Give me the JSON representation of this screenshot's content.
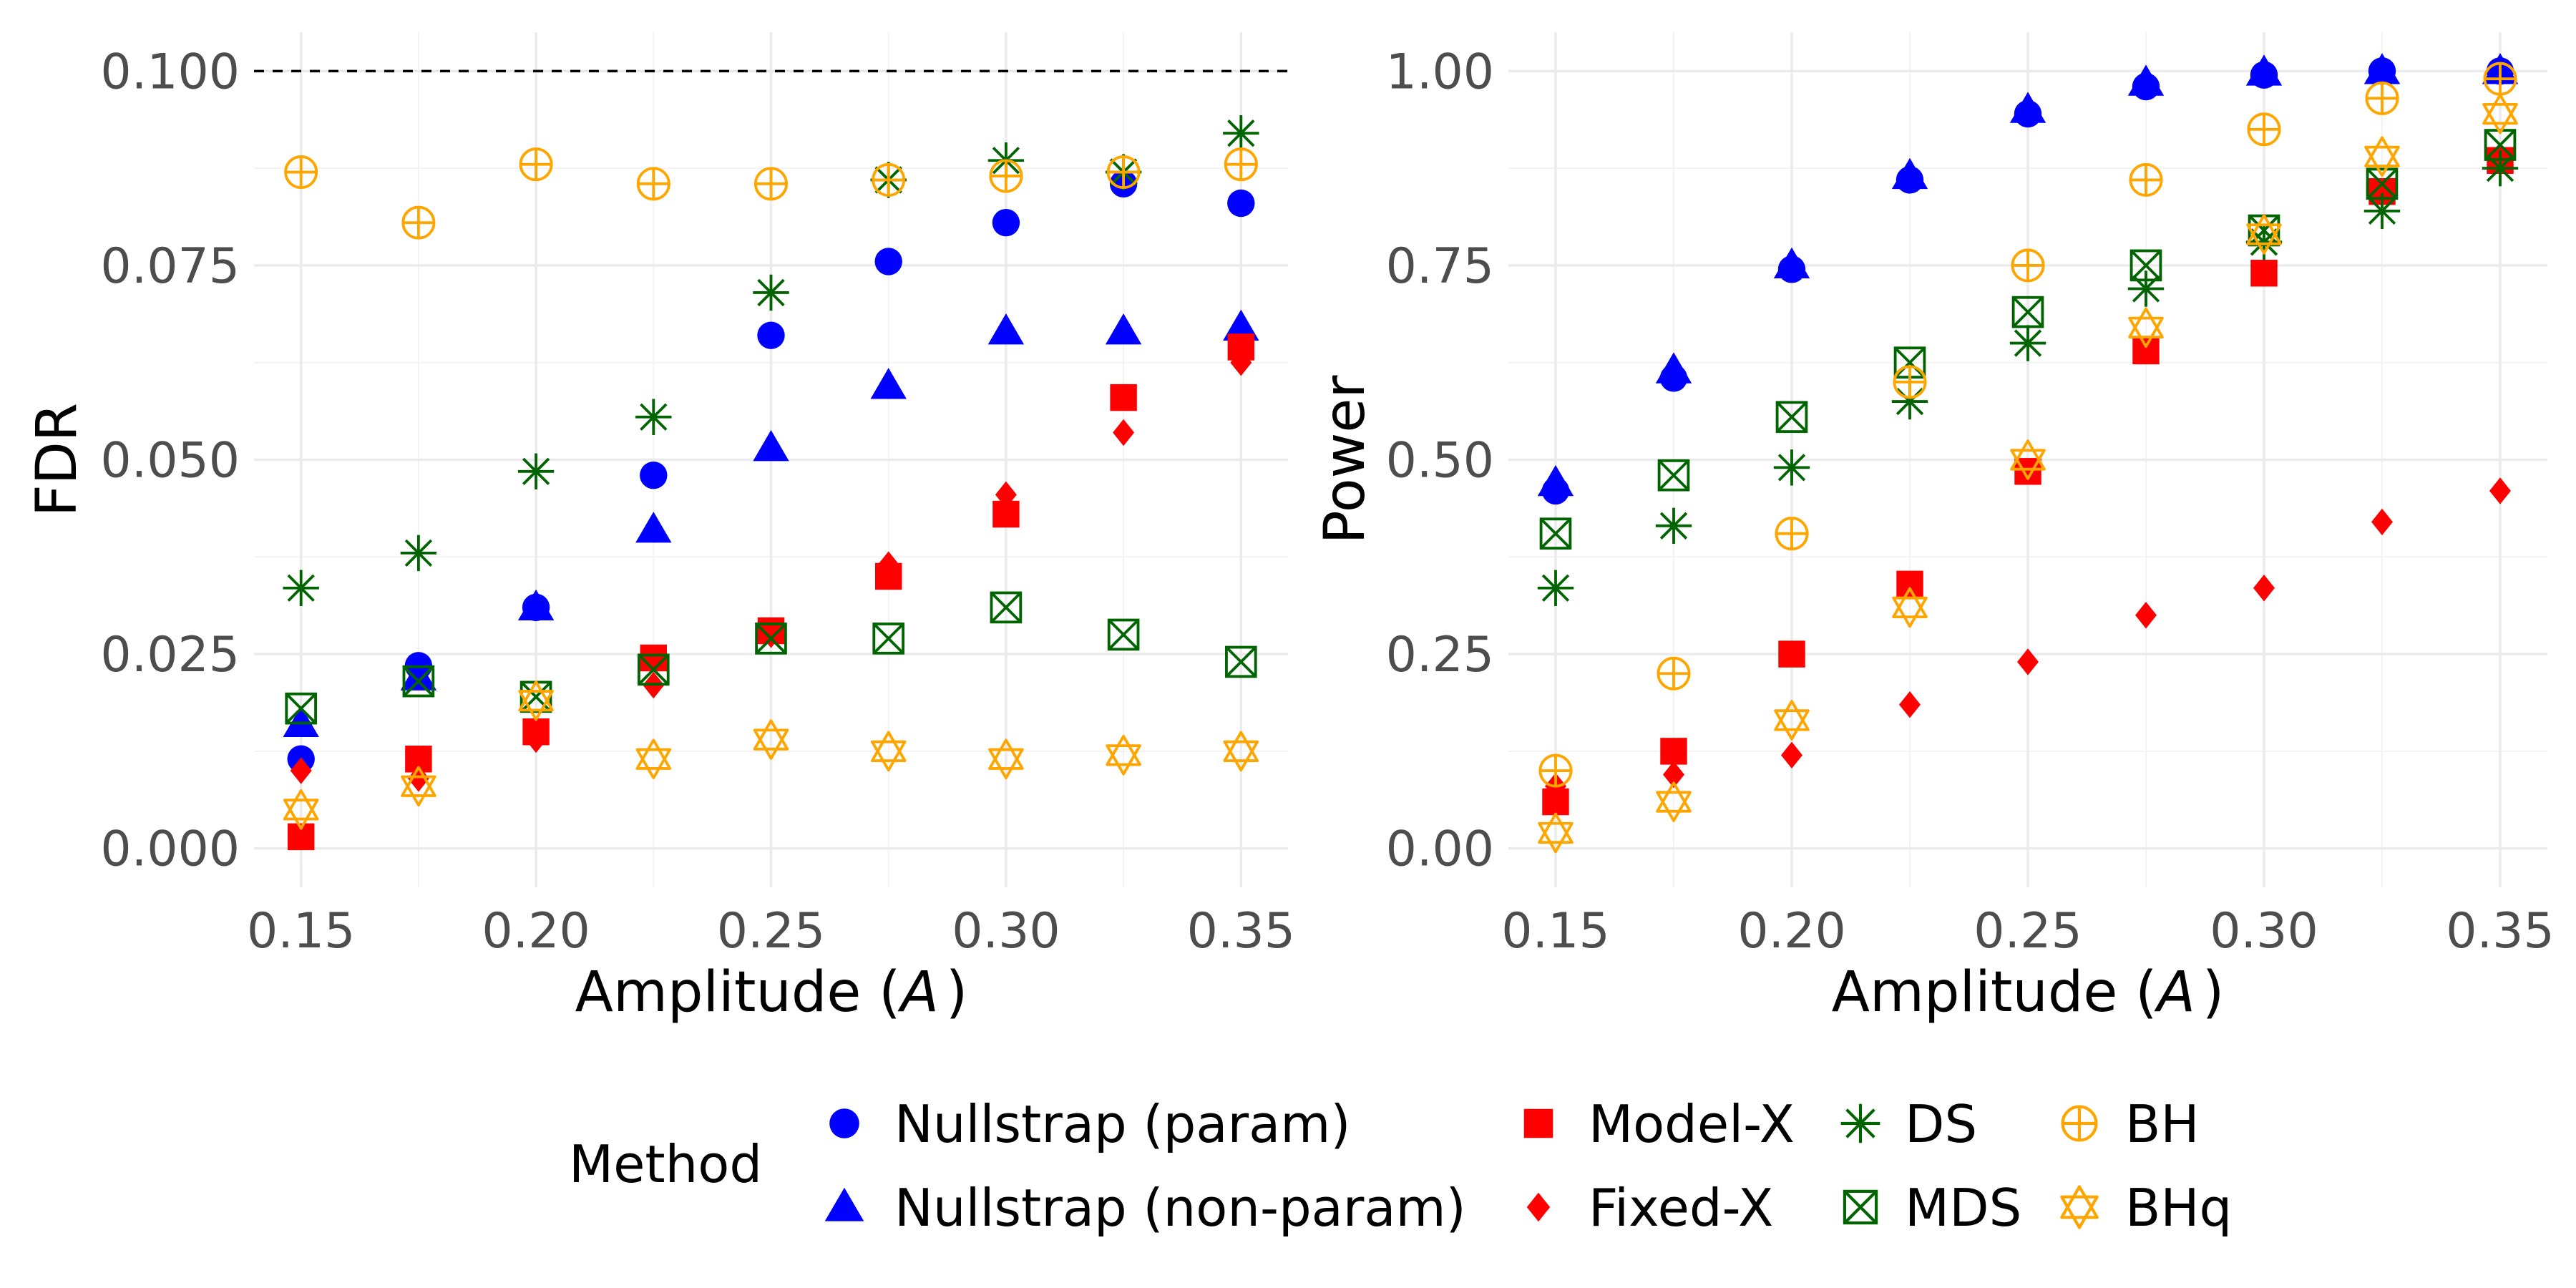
{
  "colors": {
    "blue": "#0000ff",
    "red": "#ff0000",
    "green": "#006400",
    "orange": "#ffa500"
  },
  "legend": {
    "title": "Method",
    "items": [
      {
        "key": "np_param",
        "label": "Nullstrap (param)",
        "shape": "circle",
        "color": "#0000ff"
      },
      {
        "key": "np_nonparam",
        "label": "Nullstrap (non-param)",
        "shape": "triangle",
        "color": "#0000ff"
      },
      {
        "key": "modelx",
        "label": "Model-X",
        "shape": "square",
        "color": "#ff0000"
      },
      {
        "key": "fixedx",
        "label": "Fixed-X",
        "shape": "diamond",
        "color": "#ff0000"
      },
      {
        "key": "ds",
        "label": "DS",
        "shape": "asterisk",
        "color": "#006400"
      },
      {
        "key": "mds",
        "label": "MDS",
        "shape": "boxx",
        "color": "#006400"
      },
      {
        "key": "bh",
        "label": "BH",
        "shape": "circleplus",
        "color": "#ffa500"
      },
      {
        "key": "bhq",
        "label": "BHq",
        "shape": "star6",
        "color": "#ffa500"
      }
    ]
  },
  "chart_data": [
    {
      "type": "scatter",
      "id": "fdr",
      "title": "",
      "xlabel": "Amplitude (A)",
      "xlabel_plain": "Amplitude (",
      "xlabel_var": "A",
      "xlabel_close": ")",
      "ylabel": "FDR",
      "xlim": [
        0.14,
        0.36
      ],
      "ylim": [
        -0.005,
        0.105
      ],
      "xticks": [
        0.15,
        0.2,
        0.25,
        0.3,
        0.35
      ],
      "xtick_labels": [
        "0.15",
        "0.20",
        "0.25",
        "0.30",
        "0.35"
      ],
      "yticks": [
        0.0,
        0.025,
        0.05,
        0.075,
        0.1
      ],
      "ytick_labels": [
        "0.000",
        "0.025",
        "0.050",
        "0.075",
        "0.100"
      ],
      "reference_line": {
        "y": 0.1,
        "style": "dashed"
      },
      "x": [
        0.15,
        0.175,
        0.2,
        0.225,
        0.25,
        0.275,
        0.3,
        0.325,
        0.35
      ],
      "series": [
        {
          "key": "np_param",
          "name": "Nullstrap (param)",
          "values": [
            0.0115,
            0.0235,
            0.031,
            0.048,
            0.066,
            0.0755,
            0.0805,
            0.0855,
            0.083
          ]
        },
        {
          "key": "np_nonparam",
          "name": "Nullstrap (non-param)",
          "values": [
            0.016,
            0.022,
            0.031,
            0.041,
            0.0515,
            0.0595,
            0.0665,
            0.0665,
            0.067
          ]
        },
        {
          "key": "modelx",
          "name": "Model-X",
          "values": [
            0.0015,
            0.0115,
            0.015,
            0.0245,
            0.028,
            0.035,
            0.043,
            0.058,
            0.0645
          ]
        },
        {
          "key": "fixedx",
          "name": "Fixed-X",
          "values": [
            0.01,
            0.009,
            0.014,
            0.021,
            0.0275,
            0.0365,
            0.0455,
            0.0535,
            0.0625
          ]
        },
        {
          "key": "ds",
          "name": "DS",
          "values": [
            0.0335,
            0.038,
            0.0485,
            0.0555,
            0.0715,
            0.086,
            0.0885,
            0.087,
            0.092
          ]
        },
        {
          "key": "mds",
          "name": "MDS",
          "values": [
            0.018,
            0.0215,
            0.0195,
            0.023,
            0.027,
            0.027,
            0.031,
            0.0275,
            0.024
          ]
        },
        {
          "key": "bh",
          "name": "BH",
          "values": [
            0.087,
            0.0805,
            0.088,
            0.0855,
            0.0855,
            0.086,
            0.0865,
            0.087,
            0.088
          ]
        },
        {
          "key": "bhq",
          "name": "BHq",
          "values": [
            0.005,
            0.008,
            0.019,
            0.0115,
            0.014,
            0.0125,
            0.0115,
            0.012,
            0.0125
          ]
        }
      ]
    },
    {
      "type": "scatter",
      "id": "power",
      "title": "",
      "xlabel": "Amplitude (A)",
      "xlabel_plain": "Amplitude (",
      "xlabel_var": "A",
      "xlabel_close": ")",
      "ylabel": "Power",
      "xlim": [
        0.14,
        0.36
      ],
      "ylim": [
        -0.05,
        1.05
      ],
      "xticks": [
        0.15,
        0.2,
        0.25,
        0.3,
        0.35
      ],
      "xtick_labels": [
        "0.15",
        "0.20",
        "0.25",
        "0.30",
        "0.35"
      ],
      "yticks": [
        0.0,
        0.25,
        0.5,
        0.75,
        1.0
      ],
      "ytick_labels": [
        "0.00",
        "0.25",
        "0.50",
        "0.75",
        "1.00"
      ],
      "x": [
        0.15,
        0.175,
        0.2,
        0.225,
        0.25,
        0.275,
        0.3,
        0.325,
        0.35
      ],
      "series": [
        {
          "key": "np_param",
          "name": "Nullstrap (param)",
          "values": [
            0.46,
            0.605,
            0.745,
            0.86,
            0.945,
            0.98,
            0.995,
            1.0,
            1.0
          ]
        },
        {
          "key": "np_nonparam",
          "name": "Nullstrap (non-param)",
          "values": [
            0.47,
            0.615,
            0.75,
            0.865,
            0.95,
            0.985,
            0.998,
            1.0,
            1.0
          ]
        },
        {
          "key": "modelx",
          "name": "Model-X",
          "values": [
            0.06,
            0.125,
            0.25,
            0.34,
            0.485,
            0.64,
            0.74,
            0.845,
            0.885
          ]
        },
        {
          "key": "fixedx",
          "name": "Fixed-X",
          "values": [
            0.08,
            0.095,
            0.12,
            0.185,
            0.24,
            0.3,
            0.335,
            0.42,
            0.46
          ]
        },
        {
          "key": "ds",
          "name": "DS",
          "values": [
            0.335,
            0.415,
            0.49,
            0.575,
            0.65,
            0.72,
            0.78,
            0.82,
            0.875
          ]
        },
        {
          "key": "mds",
          "name": "MDS",
          "values": [
            0.405,
            0.48,
            0.555,
            0.625,
            0.69,
            0.75,
            0.795,
            0.855,
            0.905
          ]
        },
        {
          "key": "bh",
          "name": "BH",
          "values": [
            0.1,
            0.225,
            0.405,
            0.6,
            0.75,
            0.86,
            0.925,
            0.965,
            0.99
          ]
        },
        {
          "key": "bhq",
          "name": "BHq",
          "values": [
            0.02,
            0.06,
            0.165,
            0.31,
            0.5,
            0.67,
            0.79,
            0.89,
            0.945
          ]
        }
      ]
    }
  ]
}
